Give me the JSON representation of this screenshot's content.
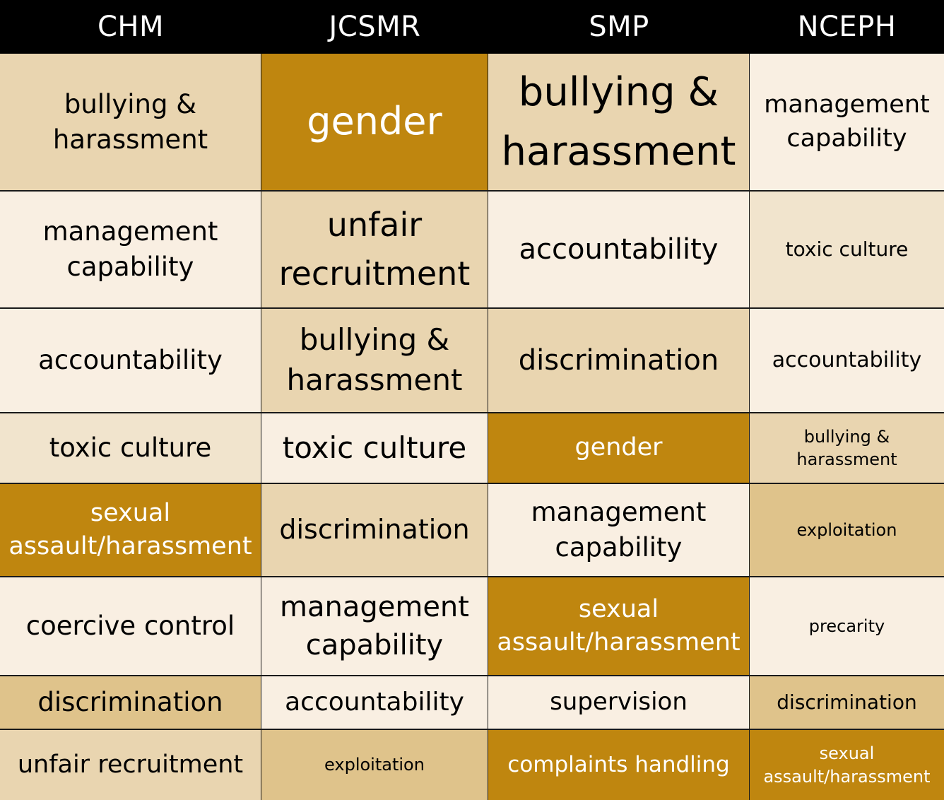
{
  "columns": [
    "CHM",
    "JCSMR",
    "SMP",
    "NCEPH"
  ],
  "rows": [
    [
      "bullying &\nharassment",
      "gender",
      "bullying &\nharassment",
      "management\ncapability"
    ],
    [
      "management\ncapability",
      "unfair\nrecruitment",
      "accountability",
      "toxic culture"
    ],
    [
      "accountability",
      "bullying &\nharassment",
      "discrimination",
      "accountability"
    ],
    [
      "toxic culture",
      "toxic culture",
      "gender",
      "bullying &\nharassment"
    ],
    [
      "sexual\nassault/harassment",
      "discrimination",
      "management\ncapability",
      "exploitation"
    ],
    [
      "coercive control",
      "management\ncapability",
      "sexual\nassault/harassment",
      "precarity"
    ],
    [
      "discrimination",
      "accountability",
      "supervision",
      "discrimination"
    ],
    [
      "unfair recruitment",
      "exploitation",
      "complaints handling",
      "sexual\nassault/harassment"
    ]
  ],
  "shade_levels": [
    [
      3,
      5,
      3,
      1
    ],
    [
      1,
      3,
      1,
      2
    ],
    [
      1,
      3,
      3,
      1
    ],
    [
      2,
      1,
      5,
      3
    ],
    [
      5,
      3,
      1,
      4
    ],
    [
      1,
      1,
      5,
      1
    ],
    [
      4,
      1,
      1,
      4
    ],
    [
      3,
      4,
      5,
      5
    ]
  ],
  "colors": {
    "header_bg": "#000000",
    "header_text": "#ffffff",
    "level_1": "#f9efe2",
    "level_2": "#f1e4cd",
    "level_3": "#e9d5b0",
    "level_4": "#dfc38b",
    "level_5": "#bf860f"
  }
}
